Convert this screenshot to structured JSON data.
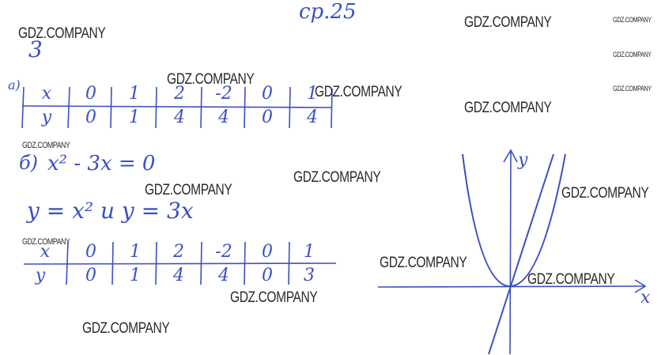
{
  "header": {
    "page": "ср.25",
    "task_number": "3"
  },
  "part_a": {
    "label": "а)",
    "x_row": [
      "x",
      "0",
      "1",
      "2",
      "-2",
      "0",
      "1"
    ],
    "y_row": [
      "y",
      "0",
      "1",
      "4",
      "4",
      "0",
      "4"
    ]
  },
  "part_b": {
    "label": "б)",
    "equation": "x² - 3x = 0",
    "functions": "y = x² и y = 3x",
    "x_row": [
      "x",
      "0",
      "1",
      "2",
      "-2",
      "0",
      "1"
    ],
    "y_row": [
      "y",
      "0",
      "1",
      "4",
      "4",
      "0",
      "3"
    ]
  },
  "graph": {
    "x_label": "x",
    "y_label": "y"
  },
  "watermark": "GDZ.COMPANY",
  "colors": {
    "ink": "#3b4fc4",
    "watermark": "#2a2a2a"
  }
}
